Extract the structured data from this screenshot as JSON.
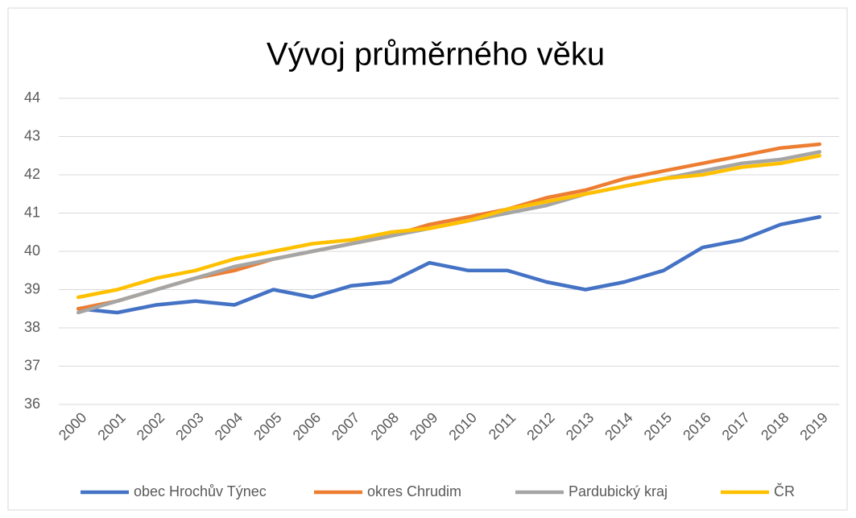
{
  "chart_data": {
    "type": "line",
    "title": "Vývoj průměrného věku",
    "categories": [
      "2000",
      "2001",
      "2002",
      "2003",
      "2004",
      "2005",
      "2006",
      "2007",
      "2008",
      "2009",
      "2010",
      "2011",
      "2012",
      "2013",
      "2014",
      "2015",
      "2016",
      "2017",
      "2018",
      "2019"
    ],
    "series": [
      {
        "name": "obec Hrochův Týnec",
        "color": "#4472c4",
        "values": [
          38.5,
          38.4,
          38.6,
          38.7,
          38.6,
          39.0,
          38.8,
          39.1,
          39.2,
          39.7,
          39.5,
          39.5,
          39.2,
          39.0,
          39.2,
          39.5,
          40.1,
          40.3,
          40.7,
          40.9
        ]
      },
      {
        "name": "okres Chrudim",
        "color": "#ed7d31",
        "values": [
          38.5,
          38.7,
          39.0,
          39.3,
          39.5,
          39.8,
          40.0,
          40.2,
          40.4,
          40.7,
          40.9,
          41.1,
          41.4,
          41.6,
          41.9,
          42.1,
          42.3,
          42.5,
          42.7,
          42.8
        ]
      },
      {
        "name": "Pardubický kraj",
        "color": "#a5a5a5",
        "values": [
          38.4,
          38.7,
          39.0,
          39.3,
          39.6,
          39.8,
          40.0,
          40.2,
          40.4,
          40.6,
          40.8,
          41.0,
          41.2,
          41.5,
          41.7,
          41.9,
          42.1,
          42.3,
          42.4,
          42.6
        ]
      },
      {
        "name": "ČR",
        "color": "#ffc000",
        "values": [
          38.8,
          39.0,
          39.3,
          39.5,
          39.8,
          40.0,
          40.2,
          40.3,
          40.5,
          40.6,
          40.8,
          41.1,
          41.3,
          41.5,
          41.7,
          41.9,
          42.0,
          42.2,
          42.3,
          42.5
        ]
      }
    ],
    "ylim": [
      36,
      44
    ],
    "yticks": [
      36,
      37,
      38,
      39,
      40,
      41,
      42,
      43,
      44
    ],
    "grid": true,
    "legend": "bottom"
  }
}
